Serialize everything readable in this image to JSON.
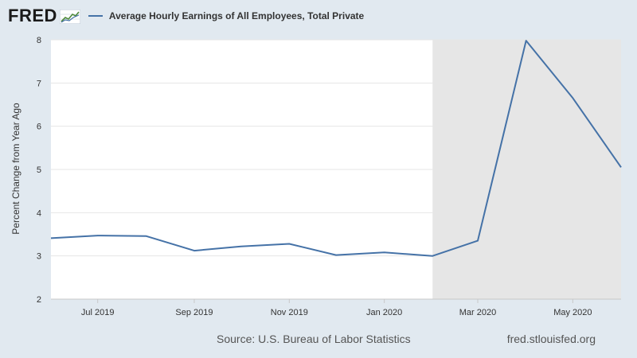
{
  "header": {
    "logo": "FRED",
    "series_title": "Average Hourly Earnings of All Employees, Total Private"
  },
  "footer": {
    "source": "Source: U.S. Bureau of Labor Statistics",
    "url": "fred.stlouisfed.org"
  },
  "colors": {
    "line": "#4572a7",
    "recession": "#e6e6e6",
    "plot_bg": "#ffffff",
    "grid": "#e6e6e6",
    "page_bg": "#e1e9f0"
  },
  "chart_data": {
    "type": "line",
    "title": "Average Hourly Earnings of All Employees, Total Private",
    "xlabel": "",
    "ylabel": "Percent Change from Year Ago",
    "ylim": [
      2,
      8
    ],
    "yticks": [
      "2",
      "3",
      "4",
      "5",
      "6",
      "7",
      "8"
    ],
    "xlim": [
      "2019-06-01",
      "2020-06-01"
    ],
    "xticks": [
      {
        "date": "2019-07-01",
        "label": "Jul 2019"
      },
      {
        "date": "2019-09-01",
        "label": "Sep 2019"
      },
      {
        "date": "2019-11-01",
        "label": "Nov 2019"
      },
      {
        "date": "2020-01-01",
        "label": "Jan 2020"
      },
      {
        "date": "2020-03-01",
        "label": "Mar 2020"
      },
      {
        "date": "2020-05-01",
        "label": "May 2020"
      }
    ],
    "recession": {
      "start": "2020-02-01",
      "end": "2020-06-01"
    },
    "grid": true,
    "series": [
      {
        "name": "Average Hourly Earnings of All Employees, Total Private",
        "x": [
          "2019-06-01",
          "2019-07-01",
          "2019-08-01",
          "2019-09-01",
          "2019-10-01",
          "2019-11-01",
          "2019-12-01",
          "2020-01-01",
          "2020-02-01",
          "2020-03-01",
          "2020-04-01",
          "2020-05-01",
          "2020-06-01"
        ],
        "values": [
          3.41,
          3.47,
          3.46,
          3.12,
          3.22,
          3.28,
          3.02,
          3.08,
          3.0,
          3.35,
          7.98,
          6.65,
          5.05
        ]
      }
    ]
  }
}
